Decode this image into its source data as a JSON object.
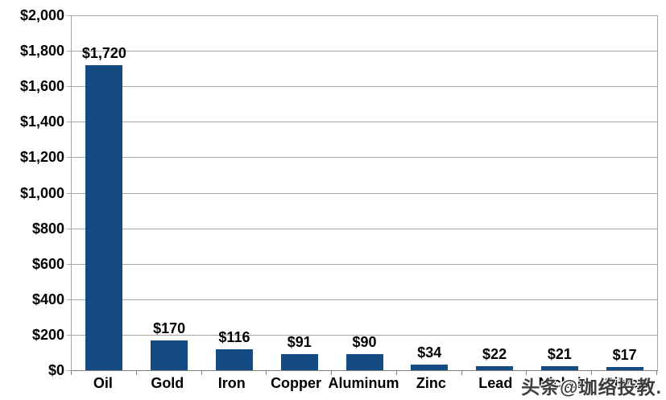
{
  "chart_data": {
    "type": "bar",
    "categories": [
      "Oil",
      "Gold",
      "Iron",
      "Copper",
      "Aluminum",
      "Zinc",
      "Lead",
      "Nickel",
      "Silver"
    ],
    "values": [
      1720,
      170,
      116,
      91,
      90,
      34,
      22,
      21,
      17
    ],
    "bar_labels": [
      "$1,720",
      "$170",
      "$116",
      "$91",
      "$90",
      "$34",
      "$22",
      "$21",
      "$17"
    ],
    "title": "",
    "xlabel": "",
    "ylabel": "",
    "ylim": [
      0,
      2000
    ],
    "ytick_step": 200,
    "ytick_labels": [
      "$0",
      "$200",
      "$400",
      "$600",
      "$800",
      "$1,000",
      "$1,200",
      "$1,400",
      "$1,600",
      "$1,800",
      "$2,000"
    ],
    "grid": true,
    "legend_position": "none"
  },
  "watermark": {
    "text": "头条@珈络投教."
  },
  "colors": {
    "bar": "#134B82",
    "gridline": "#A6A6A6",
    "axis": "#808080",
    "label_text": "#000000",
    "background": "#FFFFFF"
  }
}
